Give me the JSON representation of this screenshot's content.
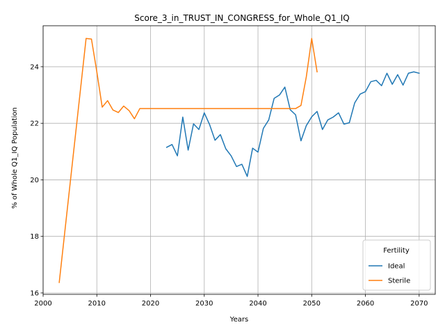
{
  "chart_data": {
    "type": "line",
    "title": "Score_3_in_TRUST_IN_CONGRESS_for_Whole_Q1_IQ",
    "xlabel": "Years",
    "ylabel": "% of Whole Q1_IQ Population",
    "xlim": [
      2000,
      2073
    ],
    "ylim": [
      15.95,
      25.45
    ],
    "xticks": [
      2000,
      2010,
      2020,
      2030,
      2040,
      2050,
      2060,
      2070
    ],
    "yticks": [
      16,
      18,
      20,
      22,
      24
    ],
    "grid": true,
    "legend": {
      "title": "Fertility",
      "placement": "lower-right"
    },
    "series": [
      {
        "name": "Ideal",
        "color": "#1f77b4",
        "x": [
          2023,
          2024,
          2025,
          2026,
          2027,
          2028,
          2029,
          2030,
          2031,
          2032,
          2033,
          2034,
          2035,
          2036,
          2037,
          2038,
          2039,
          2040,
          2041,
          2042,
          2043,
          2044,
          2045,
          2046,
          2047,
          2048,
          2049,
          2050,
          2051,
          2052,
          2053,
          2054,
          2055,
          2056,
          2057,
          2058,
          2059,
          2060,
          2061,
          2062,
          2063,
          2064,
          2065,
          2066,
          2067,
          2068,
          2069,
          2070
        ],
        "y": [
          21.15,
          21.25,
          20.85,
          22.22,
          21.05,
          21.98,
          21.78,
          22.37,
          21.95,
          21.4,
          21.6,
          21.1,
          20.85,
          20.47,
          20.55,
          20.12,
          21.12,
          20.98,
          21.82,
          22.12,
          22.88,
          23.0,
          23.28,
          22.48,
          22.3,
          21.38,
          21.92,
          22.23,
          22.42,
          21.78,
          22.12,
          22.22,
          22.37,
          21.97,
          22.02,
          22.72,
          23.03,
          23.12,
          23.47,
          23.52,
          23.33,
          23.77,
          23.38,
          23.72,
          23.35,
          23.77,
          23.82,
          23.77
        ]
      },
      {
        "name": "Sterile",
        "color": "#ff7f0e",
        "x": [
          2003,
          2008,
          2009,
          2010,
          2011,
          2012,
          2013,
          2014,
          2015,
          2016,
          2017,
          2018,
          2019,
          2020,
          2030,
          2040,
          2047,
          2048,
          2049,
          2050,
          2051
        ],
        "y": [
          16.37,
          25.0,
          24.98,
          23.82,
          22.57,
          22.8,
          22.47,
          22.38,
          22.61,
          22.45,
          22.16,
          22.52,
          22.52,
          22.52,
          22.52,
          22.52,
          22.52,
          22.63,
          23.65,
          25.0,
          23.82
        ]
      }
    ]
  }
}
